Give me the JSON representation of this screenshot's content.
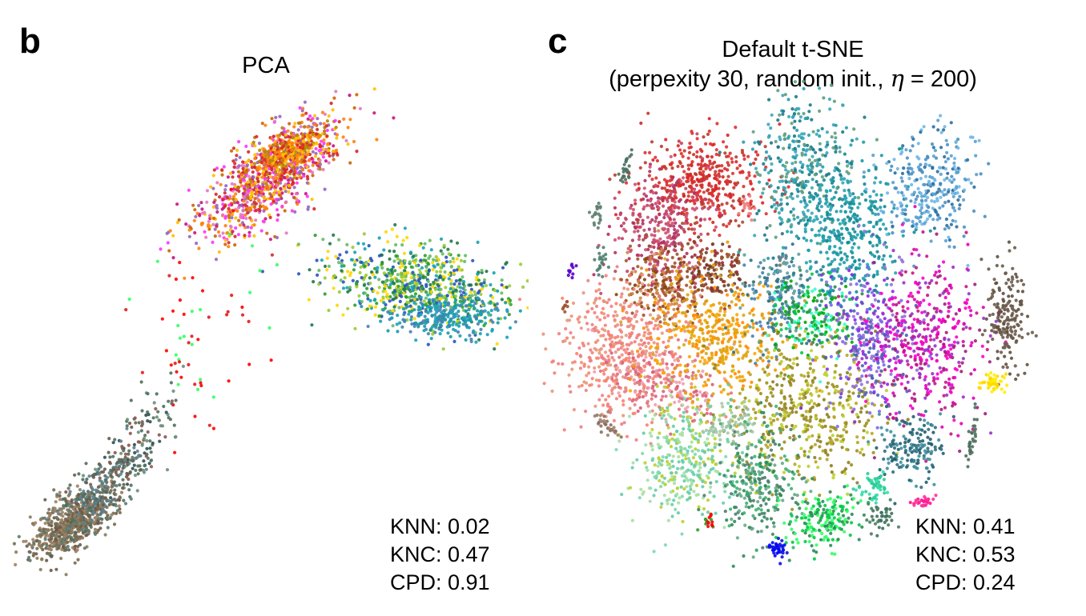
{
  "panels": {
    "b": {
      "letter": "b",
      "title": "PCA",
      "metrics": [
        "KNN: 0.02",
        "KNC: 0.47",
        "CPD: 0.91"
      ]
    },
    "c": {
      "letter": "c",
      "title_line1": "Default t-SNE",
      "title_line2_pre": "(perpexity 30, random init., ",
      "title_line2_eta": "η",
      "title_line2_post": " = 200)",
      "metrics": [
        "KNN: 0.41",
        "KNC: 0.53",
        "CPD: 0.24"
      ]
    }
  },
  "chart_data": [
    {
      "type": "scatter",
      "title": "PCA",
      "xlabel": "",
      "ylabel": "",
      "axes": "none",
      "grid": false,
      "legend": "none",
      "annotations": [
        "KNN: 0.02",
        "KNC: 0.47",
        "CPD: 0.91"
      ],
      "colors": [
        "#d62728",
        "#e377c2",
        "#ff33ff",
        "#ffbf00",
        "#ff7f0e",
        "#8c564b",
        "#9467bd",
        "#2ca02c",
        "#17a2b8",
        "#99cc33",
        "#2a52be",
        "#6b5b4b",
        "#ff0000",
        "#33ff66"
      ]
    },
    {
      "type": "scatter",
      "title": "Default t-SNE (perpexity 30, random init., η = 200)",
      "xlabel": "",
      "ylabel": "",
      "axes": "none",
      "grid": false,
      "legend": "none",
      "annotations": [
        "KNN: 0.41",
        "KNC: 0.53",
        "CPD: 0.24"
      ],
      "colors": [
        "#d62728",
        "#2a9db0",
        "#6fb7e6",
        "#1a9aa6",
        "#c0446a",
        "#a0522d",
        "#f08080",
        "#ffa500",
        "#9c8f1f",
        "#ff00cc",
        "#9370db",
        "#8a2be2",
        "#00aa00",
        "#66cdaa",
        "#2e8b57",
        "#5f4f3f",
        "#ffee00",
        "#0000ff",
        "#ff1493",
        "#3cb371",
        "#4682b4"
      ]
    }
  ]
}
